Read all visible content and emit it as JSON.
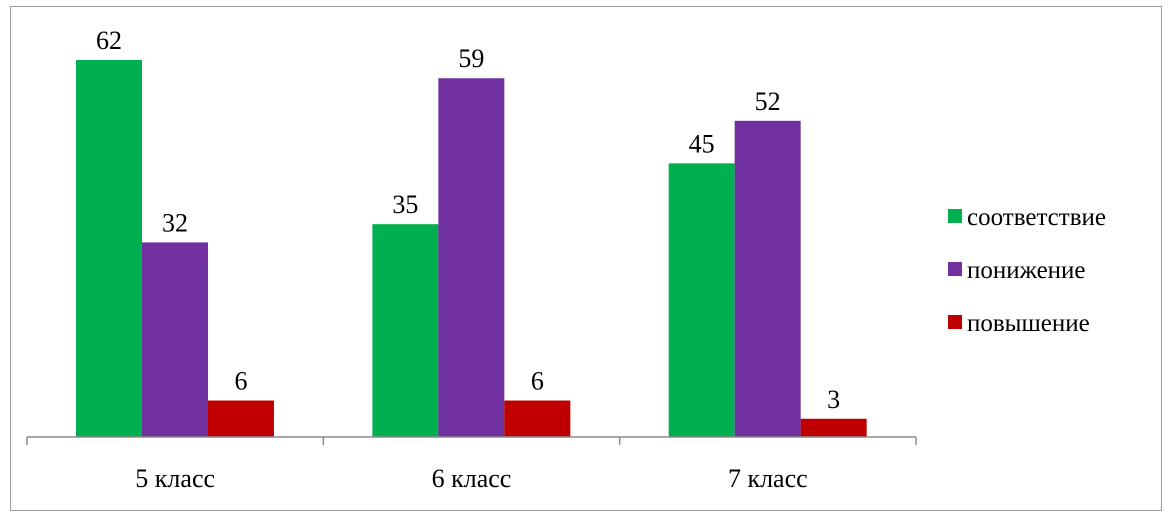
{
  "chart_data": {
    "type": "bar",
    "categories": [
      "5 класс",
      "6 класс",
      "7 класс"
    ],
    "series": [
      {
        "name": "соответствие",
        "color": "#00b050",
        "values": [
          62,
          35,
          45
        ]
      },
      {
        "name": "понижение",
        "color": "#7030a0",
        "values": [
          32,
          59,
          52
        ]
      },
      {
        "name": "повышение",
        "color": "#c00000",
        "values": [
          6,
          6,
          3
        ]
      }
    ],
    "ylim": [
      0,
      62
    ],
    "grid": false,
    "legend_position": "right"
  }
}
